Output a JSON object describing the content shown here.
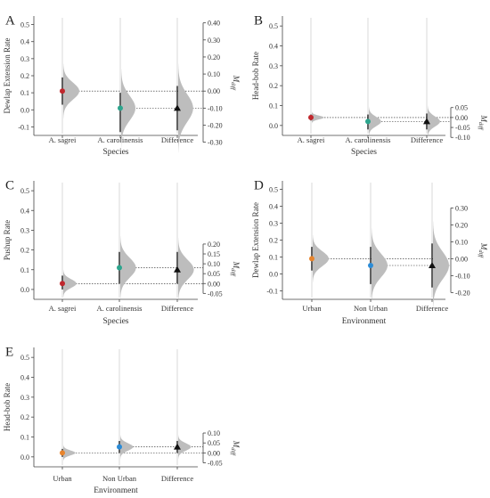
{
  "figure": {
    "colors": {
      "gray_dist": "#bdbdbd",
      "red": "#c0272d",
      "green": "#2ca58d",
      "orange": "#e8842c",
      "blue": "#2b8bd6",
      "black": "#111111"
    },
    "right_axis_label_main": "M",
    "right_axis_label_sub": "diff"
  },
  "chart_data": [
    {
      "type": "scatter",
      "panel": "A",
      "ylabel": "Dewlap Extension Rate",
      "xlabel": "Species",
      "categories": [
        "A. sagrei",
        "A. carolinensis",
        "Difference"
      ],
      "ylim": [
        -0.15,
        0.55
      ],
      "yticks": [
        -0.1,
        0.0,
        0.1,
        0.2,
        0.3,
        0.4,
        0.5
      ],
      "ytick_labels": [
        "-0.1",
        "0.0",
        "0.1",
        "0.2",
        "0.3",
        "0.4",
        "0.5"
      ],
      "groups": [
        {
          "category": "A. sagrei",
          "mean": 0.11,
          "ci": [
            0.03,
            0.19
          ],
          "color": "red",
          "dist_width": 0.18
        },
        {
          "category": "A. carolinensis",
          "mean": 0.01,
          "ci": [
            -0.13,
            0.1
          ],
          "color": "green",
          "dist_width": 0.1
        }
      ],
      "difference": {
        "mean": -0.1,
        "ci": [
          -0.23,
          0.03
        ],
        "dist_width": 0.12
      },
      "right_ticks": [
        0.4,
        0.3,
        0.2,
        0.1,
        0.0,
        -0.1,
        -0.2,
        -0.3
      ],
      "right_tick_labels": [
        "0.40",
        "0.30",
        "0.20",
        "0.10",
        "0.00",
        "-0.10",
        "-0.20",
        "-0.30"
      ]
    },
    {
      "type": "scatter",
      "panel": "B",
      "ylabel": "Head-bob Rate",
      "xlabel": "Species",
      "categories": [
        "A. sagrei",
        "A. carolinensis",
        "Difference"
      ],
      "ylim": [
        -0.05,
        0.55
      ],
      "yticks": [
        0.0,
        0.1,
        0.2,
        0.3,
        0.4,
        0.5
      ],
      "ytick_labels": [
        "0.0",
        "0.1",
        "0.2",
        "0.3",
        "0.4",
        "0.5"
      ],
      "groups": [
        {
          "category": "A. sagrei",
          "mean": 0.04,
          "ci": [
            0.025,
            0.055
          ],
          "color": "red",
          "dist_width": 0.04
        },
        {
          "category": "A. carolinensis",
          "mean": 0.02,
          "ci": [
            -0.02,
            0.055
          ],
          "color": "green",
          "dist_width": 0.045
        }
      ],
      "difference": {
        "mean": -0.02,
        "ci": [
          -0.06,
          0.02
        ],
        "dist_width": 0.05
      },
      "right_ticks": [
        0.05,
        0.0,
        -0.05,
        -0.1
      ],
      "right_tick_labels": [
        "0.05",
        "0.00",
        "-0.05",
        "-0.10"
      ]
    },
    {
      "type": "scatter",
      "panel": "C",
      "ylabel": "Pushup Rate",
      "xlabel": "Species",
      "categories": [
        "A. sagrei",
        "A. carolinensis",
        "Difference"
      ],
      "ylim": [
        -0.05,
        0.55
      ],
      "yticks": [
        0.0,
        0.1,
        0.2,
        0.3,
        0.4,
        0.5
      ],
      "ytick_labels": [
        "0.0",
        "0.1",
        "0.2",
        "0.3",
        "0.4",
        "0.5"
      ],
      "groups": [
        {
          "category": "A. sagrei",
          "mean": 0.03,
          "ci": [
            0.0,
            0.07
          ],
          "color": "red",
          "dist_width": 0.07
        },
        {
          "category": "A. carolinensis",
          "mean": 0.11,
          "ci": [
            0.03,
            0.19
          ],
          "color": "green",
          "dist_width": 0.14
        }
      ],
      "difference": {
        "mean": 0.07,
        "ci": [
          0.0,
          0.16
        ],
        "dist_width": 0.14
      },
      "right_ticks": [
        0.2,
        0.15,
        0.1,
        0.05,
        0.0,
        -0.05
      ],
      "right_tick_labels": [
        "0.20",
        "0.15",
        "0.10",
        "0.05",
        "0.00",
        "-0.05"
      ]
    },
    {
      "type": "scatter",
      "panel": "D",
      "ylabel": "Dewlap Extension Rate",
      "xlabel": "Environment",
      "categories": [
        "Urban",
        "Non Urban",
        "Difference"
      ],
      "ylim": [
        -0.15,
        0.55
      ],
      "yticks": [
        -0.1,
        0.0,
        0.1,
        0.2,
        0.3,
        0.4,
        0.5
      ],
      "ytick_labels": [
        "-0.1",
        "0.0",
        "0.1",
        "0.2",
        "0.3",
        "0.4",
        "0.5"
      ],
      "groups": [
        {
          "category": "Urban",
          "mean": 0.09,
          "ci": [
            0.02,
            0.16
          ],
          "color": "orange",
          "dist_width": 0.15
        },
        {
          "category": "Non Urban",
          "mean": 0.05,
          "ci": [
            -0.06,
            0.16
          ],
          "color": "blue",
          "dist_width": 0.18
        }
      ],
      "difference": {
        "mean": -0.04,
        "ci": [
          -0.17,
          0.09
        ],
        "dist_width": 0.16
      },
      "right_ticks": [
        0.3,
        0.2,
        0.1,
        0.0,
        -0.1,
        -0.2
      ],
      "right_tick_labels": [
        "0.30",
        "0.20",
        "0.10",
        "0.00",
        "-0.10",
        "-0.20"
      ]
    },
    {
      "type": "scatter",
      "panel": "E",
      "ylabel": "Head-bob Rate",
      "xlabel": "Environment",
      "categories": [
        "Urban",
        "Non Urban",
        "Difference"
      ],
      "ylim": [
        -0.05,
        0.55
      ],
      "yticks": [
        0.0,
        0.1,
        0.2,
        0.3,
        0.4,
        0.5
      ],
      "ytick_labels": [
        "0.0",
        "0.1",
        "0.2",
        "0.3",
        "0.4",
        "0.5"
      ],
      "groups": [
        {
          "category": "Urban",
          "mean": 0.02,
          "ci": [
            0.0,
            0.04
          ],
          "color": "orange",
          "dist_width": 0.04
        },
        {
          "category": "Non Urban",
          "mean": 0.05,
          "ci": [
            0.02,
            0.08
          ],
          "color": "blue",
          "dist_width": 0.06
        }
      ],
      "difference": {
        "mean": 0.03,
        "ci": [
          0.0,
          0.06
        ],
        "dist_width": 0.06
      },
      "right_ticks": [
        0.1,
        0.05,
        0.0,
        -0.05
      ],
      "right_tick_labels": [
        "0.10",
        "0.05",
        "0.00",
        "-0.05"
      ]
    }
  ]
}
